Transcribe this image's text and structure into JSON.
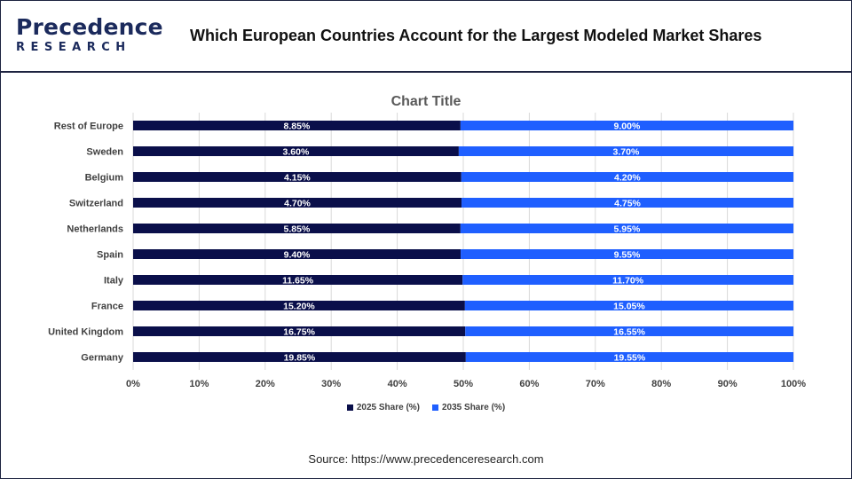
{
  "header": {
    "logo_top": "Precedence",
    "logo_bottom": "RESEARCH",
    "title": "Which European Countries Account for the Largest Modeled Market Shares"
  },
  "colors": {
    "brand_navy": "#1b2a5c",
    "series_2025": "#0a0f4a",
    "series_2035": "#1f5fff"
  },
  "chart_data": {
    "type": "bar",
    "orientation": "horizontal",
    "stacked": "100%",
    "title": "Chart Title",
    "categories": [
      "Rest of Europe",
      "Sweden",
      "Belgium",
      "Switzerland",
      "Netherlands",
      "Spain",
      "Italy",
      "France",
      "United Kingdom",
      "Germany"
    ],
    "series": [
      {
        "name": "2025 Share (%)",
        "color": "#0a0f4a",
        "values": [
          8.85,
          3.6,
          4.15,
          4.7,
          5.85,
          9.4,
          11.65,
          15.2,
          16.75,
          19.85
        ],
        "labels": [
          "8.85%",
          "3.60%",
          "4.15%",
          "4.70%",
          "5.85%",
          "9.40%",
          "11.65%",
          "15.20%",
          "16.75%",
          "19.85%"
        ]
      },
      {
        "name": "2035 Share (%)",
        "color": "#1f5fff",
        "values": [
          9.0,
          3.7,
          4.2,
          4.75,
          5.95,
          9.55,
          11.7,
          15.05,
          16.55,
          19.55
        ],
        "labels": [
          "9.00%",
          "3.70%",
          "4.20%",
          "4.75%",
          "5.95%",
          "9.55%",
          "11.70%",
          "15.05%",
          "16.55%",
          "19.55%"
        ]
      }
    ],
    "x_ticks": [
      "0%",
      "10%",
      "20%",
      "30%",
      "40%",
      "50%",
      "60%",
      "70%",
      "80%",
      "90%",
      "100%"
    ],
    "xlim": [
      0,
      100
    ],
    "grid": true,
    "legend_position": "bottom"
  },
  "footer": {
    "source": "Source: https://www.precedenceresearch.com"
  }
}
